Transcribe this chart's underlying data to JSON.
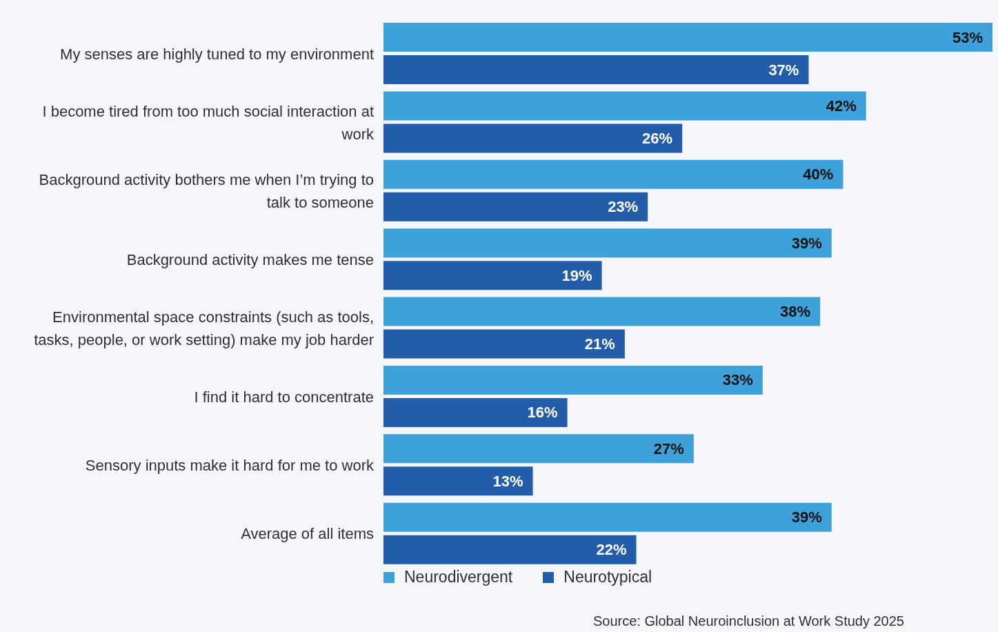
{
  "chart_data": {
    "type": "bar",
    "orientation": "horizontal",
    "categories": [
      "My senses are highly tuned to my environment",
      "I become tired from too much social interaction at work",
      "Background activity bothers me when I’m trying to talk to someone",
      "Background activity makes me tense",
      "Environmental space constraints (such as tools, tasks, people, or work setting) make my job harder",
      "I find it hard to concentrate",
      "Sensory inputs make it hard for me to work",
      "Average of all items"
    ],
    "series": [
      {
        "name": "Neurodivergent",
        "color": "#3fa1da",
        "values": [
          53,
          42,
          40,
          39,
          38,
          33,
          27,
          39
        ],
        "value_labels": [
          "53%",
          "42%",
          "40%",
          "39%",
          "38%",
          "33%",
          "27%",
          "39%"
        ]
      },
      {
        "name": "Neurotypical",
        "color": "#235ca9",
        "values": [
          37,
          26,
          23,
          19,
          21,
          16,
          13,
          22
        ],
        "value_labels": [
          "37%",
          "26%",
          "23%",
          "19%",
          "21%",
          "16%",
          "13%",
          "22%"
        ]
      }
    ],
    "legend": "bottom left",
    "grid": false,
    "annotations": [
      "Source: Global Neuroinclusion at Work Study 2025"
    ]
  }
}
